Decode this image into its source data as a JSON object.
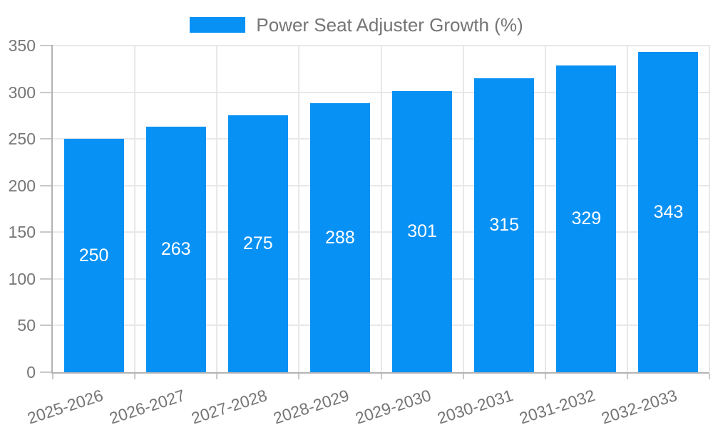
{
  "legend": {
    "label": "Power Seat Adjuster Growth (%)"
  },
  "colors": {
    "bar": "#0891F5",
    "grid": "#E8E8E8",
    "axis": "#B3B3B3",
    "tick": "#C9C9C9",
    "text": "#757575",
    "value_label": "#FFFFFF",
    "background": "#FFFFFF"
  },
  "chart_data": {
    "type": "bar",
    "title": "",
    "xlabel": "",
    "ylabel": "",
    "categories": [
      "2025-2026",
      "2026-2027",
      "2027-2028",
      "2028-2029",
      "2029-2030",
      "2030-2031",
      "2031-2032",
      "2032-2033"
    ],
    "series": [
      {
        "name": "Power Seat Adjuster Growth (%)",
        "values": [
          250,
          263,
          275,
          288,
          301,
          315,
          329,
          343
        ]
      }
    ],
    "value_labels": [
      "250",
      "263",
      "275",
      "288",
      "301",
      "315",
      "329",
      "343"
    ],
    "value_label_position": "inside-center",
    "ylim": [
      0,
      350
    ],
    "yticks": [
      0,
      50,
      100,
      150,
      200,
      250,
      300,
      350
    ],
    "grid": true,
    "legend_position": "top-center",
    "x_tick_rotation_deg": -18
  }
}
